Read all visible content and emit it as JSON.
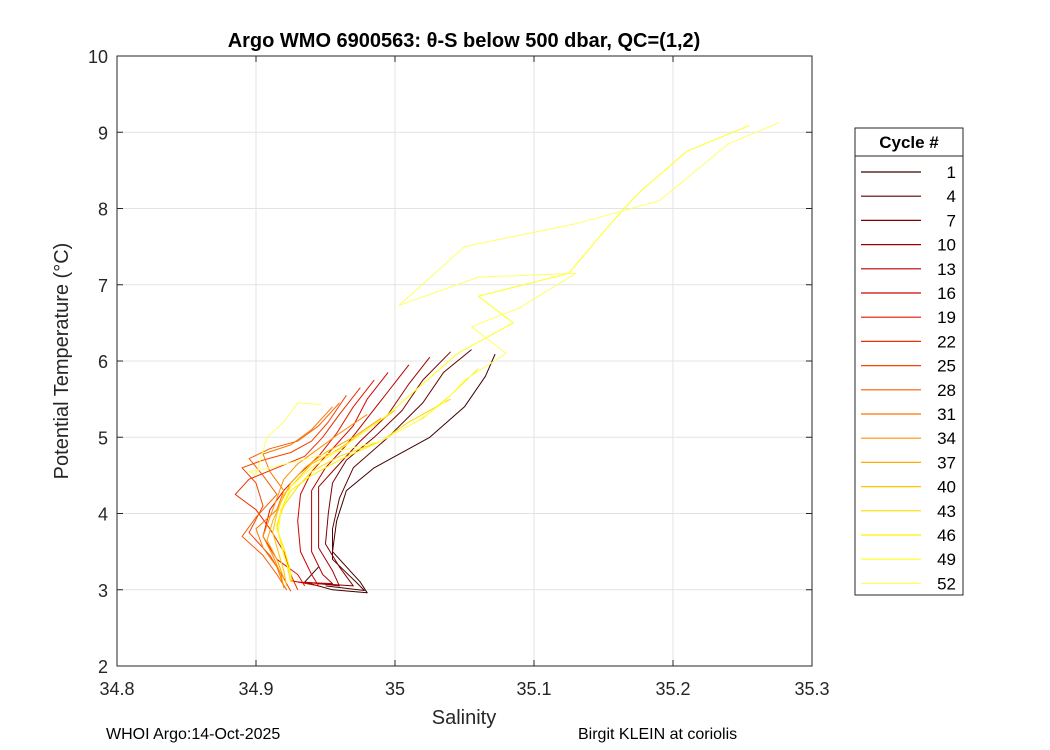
{
  "chart_data": {
    "type": "line",
    "title": "Argo WMO 6900563: θ-S below 500 dbar,  QC=(1,2)",
    "xlabel": "Salinity",
    "ylabel": "Potential Temperature (°C)",
    "xlim": [
      34.8,
      35.3
    ],
    "ylim": [
      2,
      10
    ],
    "xticks": [
      "34.8",
      "34.9",
      "35",
      "35.1",
      "35.2",
      "35.3"
    ],
    "yticks": [
      "2",
      "3",
      "4",
      "5",
      "6",
      "7",
      "8",
      "9",
      "10"
    ],
    "grid": true,
    "legend": {
      "title": "Cycle #",
      "placement": "outside-right",
      "entries": [
        "1",
        "4",
        "7",
        "10",
        "13",
        "16",
        "19",
        "22",
        "25",
        "28",
        "31",
        "34",
        "37",
        "40",
        "43",
        "46",
        "49",
        "52"
      ]
    },
    "colors": [
      "#3c0000",
      "#5c0000",
      "#7c0000",
      "#9a0000",
      "#b80000",
      "#d40000",
      "#e21500",
      "#ec2c00",
      "#f34400",
      "#f85d00",
      "#fb7700",
      "#fd9000",
      "#feaa00",
      "#ffc300",
      "#ffdb00",
      "#fff000",
      "#ffff1c",
      "#ffff66"
    ],
    "series": [
      {
        "name": "1",
        "points": [
          [
            35.072,
            6.09
          ],
          [
            35.065,
            5.8
          ],
          [
            35.05,
            5.4
          ],
          [
            35.025,
            5.0
          ],
          [
            34.985,
            4.6
          ],
          [
            34.965,
            4.3
          ],
          [
            34.958,
            3.9
          ],
          [
            34.955,
            3.5
          ],
          [
            34.975,
            3.1
          ],
          [
            34.98,
            2.96
          ],
          [
            34.955,
            3.0
          ],
          [
            34.935,
            3.1
          ],
          [
            34.945,
            3.3
          ]
        ]
      },
      {
        "name": "4",
        "points": [
          [
            35.055,
            6.15
          ],
          [
            35.035,
            5.85
          ],
          [
            35.02,
            5.45
          ],
          [
            34.995,
            5.0
          ],
          [
            34.97,
            4.6
          ],
          [
            34.96,
            4.2
          ],
          [
            34.955,
            3.8
          ],
          [
            34.955,
            3.4
          ],
          [
            34.972,
            3.1
          ],
          [
            34.978,
            2.99
          ],
          [
            34.95,
            3.05
          ]
        ]
      },
      {
        "name": "7",
        "points": [
          [
            35.04,
            6.12
          ],
          [
            35.02,
            5.75
          ],
          [
            35.005,
            5.35
          ],
          [
            34.985,
            5.0
          ],
          [
            34.965,
            4.7
          ],
          [
            34.955,
            4.4
          ],
          [
            34.952,
            4.0
          ],
          [
            34.95,
            3.6
          ],
          [
            34.96,
            3.3
          ],
          [
            34.97,
            3.05
          ],
          [
            34.945,
            3.08
          ]
        ]
      },
      {
        "name": "10",
        "points": [
          [
            35.025,
            6.05
          ],
          [
            35.01,
            5.7
          ],
          [
            34.995,
            5.3
          ],
          [
            34.975,
            4.95
          ],
          [
            34.96,
            4.65
          ],
          [
            34.945,
            4.35
          ],
          [
            34.945,
            3.95
          ],
          [
            34.945,
            3.55
          ],
          [
            34.955,
            3.25
          ],
          [
            34.96,
            3.05
          ],
          [
            34.935,
            3.1
          ]
        ]
      },
      {
        "name": "13",
        "points": [
          [
            35.01,
            5.95
          ],
          [
            34.995,
            5.6
          ],
          [
            34.98,
            5.25
          ],
          [
            34.965,
            4.9
          ],
          [
            34.95,
            4.6
          ],
          [
            34.94,
            4.3
          ],
          [
            34.94,
            3.9
          ],
          [
            34.94,
            3.5
          ],
          [
            34.948,
            3.2
          ],
          [
            34.955,
            3.08
          ],
          [
            34.93,
            3.1
          ]
        ]
      },
      {
        "name": "16",
        "points": [
          [
            34.995,
            5.85
          ],
          [
            34.98,
            5.5
          ],
          [
            34.97,
            5.15
          ],
          [
            34.955,
            4.85
          ],
          [
            34.94,
            4.55
          ],
          [
            34.932,
            4.25
          ],
          [
            34.93,
            3.9
          ],
          [
            34.932,
            3.5
          ],
          [
            34.94,
            3.2
          ],
          [
            34.945,
            3.05
          ],
          [
            34.925,
            3.12
          ]
        ]
      },
      {
        "name": "19",
        "points": [
          [
            34.985,
            5.75
          ],
          [
            34.97,
            5.4
          ],
          [
            34.958,
            5.05
          ],
          [
            34.945,
            4.75
          ],
          [
            34.93,
            4.5
          ],
          [
            34.92,
            4.3
          ],
          [
            34.91,
            4.05
          ],
          [
            34.905,
            3.7
          ],
          [
            34.915,
            3.4
          ],
          [
            34.93,
            3.2
          ],
          [
            34.935,
            3.05
          ]
        ]
      },
      {
        "name": "22",
        "points": [
          [
            34.975,
            5.65
          ],
          [
            34.96,
            5.3
          ],
          [
            34.948,
            5.0
          ],
          [
            34.935,
            4.75
          ],
          [
            34.915,
            4.6
          ],
          [
            34.895,
            4.45
          ],
          [
            34.885,
            4.25
          ],
          [
            34.9,
            4.05
          ],
          [
            34.91,
            3.8
          ],
          [
            34.92,
            3.5
          ],
          [
            34.925,
            3.2
          ],
          [
            34.93,
            3.0
          ]
        ]
      },
      {
        "name": "25",
        "points": [
          [
            34.965,
            5.55
          ],
          [
            34.952,
            5.2
          ],
          [
            34.94,
            4.95
          ],
          [
            34.925,
            4.8
          ],
          [
            34.905,
            4.7
          ],
          [
            34.89,
            4.6
          ],
          [
            34.9,
            4.4
          ],
          [
            34.905,
            4.1
          ],
          [
            34.895,
            3.75
          ],
          [
            34.91,
            3.45
          ],
          [
            34.92,
            3.15
          ],
          [
            34.925,
            2.98
          ]
        ]
      },
      {
        "name": "28",
        "points": [
          [
            34.96,
            5.45
          ],
          [
            34.945,
            5.15
          ],
          [
            34.93,
            4.95
          ],
          [
            34.91,
            4.85
          ],
          [
            34.895,
            4.72
          ],
          [
            34.905,
            4.5
          ],
          [
            34.915,
            4.25
          ],
          [
            34.9,
            3.95
          ],
          [
            34.89,
            3.7
          ],
          [
            34.905,
            3.45
          ],
          [
            34.915,
            3.2
          ],
          [
            34.922,
            3.0
          ]
        ]
      },
      {
        "name": "31",
        "points": [
          [
            34.955,
            5.4
          ],
          [
            34.94,
            5.1
          ],
          [
            34.925,
            4.9
          ],
          [
            34.905,
            4.78
          ],
          [
            34.91,
            4.55
          ],
          [
            34.92,
            4.3
          ],
          [
            34.915,
            4.05
          ],
          [
            34.9,
            3.8
          ],
          [
            34.905,
            3.55
          ],
          [
            34.915,
            3.3
          ],
          [
            34.92,
            3.05
          ]
        ]
      },
      {
        "name": "34",
        "points": [
          [
            34.98,
            5.3
          ],
          [
            34.96,
            5.05
          ],
          [
            34.945,
            4.85
          ],
          [
            34.93,
            4.65
          ],
          [
            34.92,
            4.45
          ],
          [
            34.915,
            4.2
          ],
          [
            34.91,
            3.95
          ],
          [
            34.905,
            3.7
          ],
          [
            34.912,
            3.45
          ],
          [
            34.918,
            3.2
          ],
          [
            34.92,
            3.02
          ]
        ]
      },
      {
        "name": "37",
        "points": [
          [
            34.99,
            5.25
          ],
          [
            34.97,
            5.0
          ],
          [
            34.95,
            4.8
          ],
          [
            34.935,
            4.6
          ],
          [
            34.925,
            4.4
          ],
          [
            34.918,
            4.15
          ],
          [
            34.912,
            3.9
          ],
          [
            34.908,
            3.65
          ],
          [
            34.915,
            3.4
          ],
          [
            34.92,
            3.15
          ]
        ]
      },
      {
        "name": "40",
        "points": [
          [
            35.0,
            5.35
          ],
          [
            34.98,
            5.1
          ],
          [
            34.96,
            4.85
          ],
          [
            34.94,
            4.65
          ],
          [
            34.93,
            4.45
          ],
          [
            34.92,
            4.25
          ],
          [
            34.915,
            4.0
          ],
          [
            34.912,
            3.75
          ],
          [
            34.916,
            3.5
          ],
          [
            34.92,
            3.25
          ],
          [
            34.922,
            3.05
          ]
        ]
      },
      {
        "name": "43",
        "points": [
          [
            35.04,
            5.5
          ],
          [
            35.01,
            5.2
          ],
          [
            34.99,
            4.95
          ],
          [
            34.96,
            4.75
          ],
          [
            34.94,
            4.55
          ],
          [
            34.93,
            4.35
          ],
          [
            34.92,
            4.1
          ],
          [
            34.915,
            3.85
          ],
          [
            34.918,
            3.6
          ],
          [
            34.922,
            3.35
          ],
          [
            34.925,
            3.1
          ]
        ]
      },
      {
        "name": "46",
        "points": [
          [
            35.06,
            5.9
          ],
          [
            35.04,
            5.55
          ],
          [
            35.02,
            5.25
          ],
          [
            34.99,
            4.95
          ],
          [
            34.96,
            4.7
          ],
          [
            34.94,
            4.5
          ],
          [
            34.925,
            4.3
          ],
          [
            34.918,
            4.05
          ],
          [
            34.915,
            3.8
          ],
          [
            34.92,
            3.55
          ],
          [
            34.924,
            3.3
          ],
          [
            34.926,
            3.1
          ]
        ]
      },
      {
        "name": "49",
        "points": [
          [
            35.255,
            9.09
          ],
          [
            35.21,
            8.75
          ],
          [
            35.175,
            8.2
          ],
          [
            35.155,
            7.8
          ],
          [
            35.125,
            7.15
          ],
          [
            35.06,
            6.85
          ],
          [
            35.085,
            6.5
          ],
          [
            35.045,
            6.1
          ],
          [
            35.02,
            5.7
          ],
          [
            34.995,
            5.3
          ],
          [
            34.965,
            4.9
          ],
          [
            34.94,
            4.6
          ],
          [
            34.925,
            4.35
          ],
          [
            34.918,
            4.05
          ],
          [
            34.916,
            3.75
          ],
          [
            34.92,
            3.45
          ],
          [
            34.925,
            3.2
          ]
        ]
      },
      {
        "name": "52",
        "points": [
          [
            35.277,
            9.13
          ],
          [
            35.24,
            8.85
          ],
          [
            35.19,
            8.1
          ],
          [
            35.13,
            7.8
          ],
          [
            35.05,
            7.5
          ],
          [
            35.003,
            6.73
          ],
          [
            35.06,
            7.1
          ],
          [
            35.13,
            7.15
          ],
          [
            35.09,
            6.7
          ],
          [
            35.055,
            6.45
          ],
          [
            35.08,
            6.1
          ],
          [
            35.05,
            5.75
          ],
          [
            35.035,
            5.45
          ],
          [
            35.015,
            5.2
          ],
          [
            34.99,
            4.95
          ],
          [
            34.955,
            4.8
          ],
          [
            34.91,
            4.6
          ],
          [
            34.895,
            4.55
          ],
          [
            34.9,
            4.5
          ],
          [
            34.908,
            5.0
          ],
          [
            34.92,
            5.2
          ],
          [
            34.93,
            5.45
          ],
          [
            34.947,
            5.43
          ]
        ]
      }
    ]
  },
  "footer": {
    "left": "WHOI Argo:14-Oct-2025",
    "right": "Birgit KLEIN at coriolis"
  }
}
